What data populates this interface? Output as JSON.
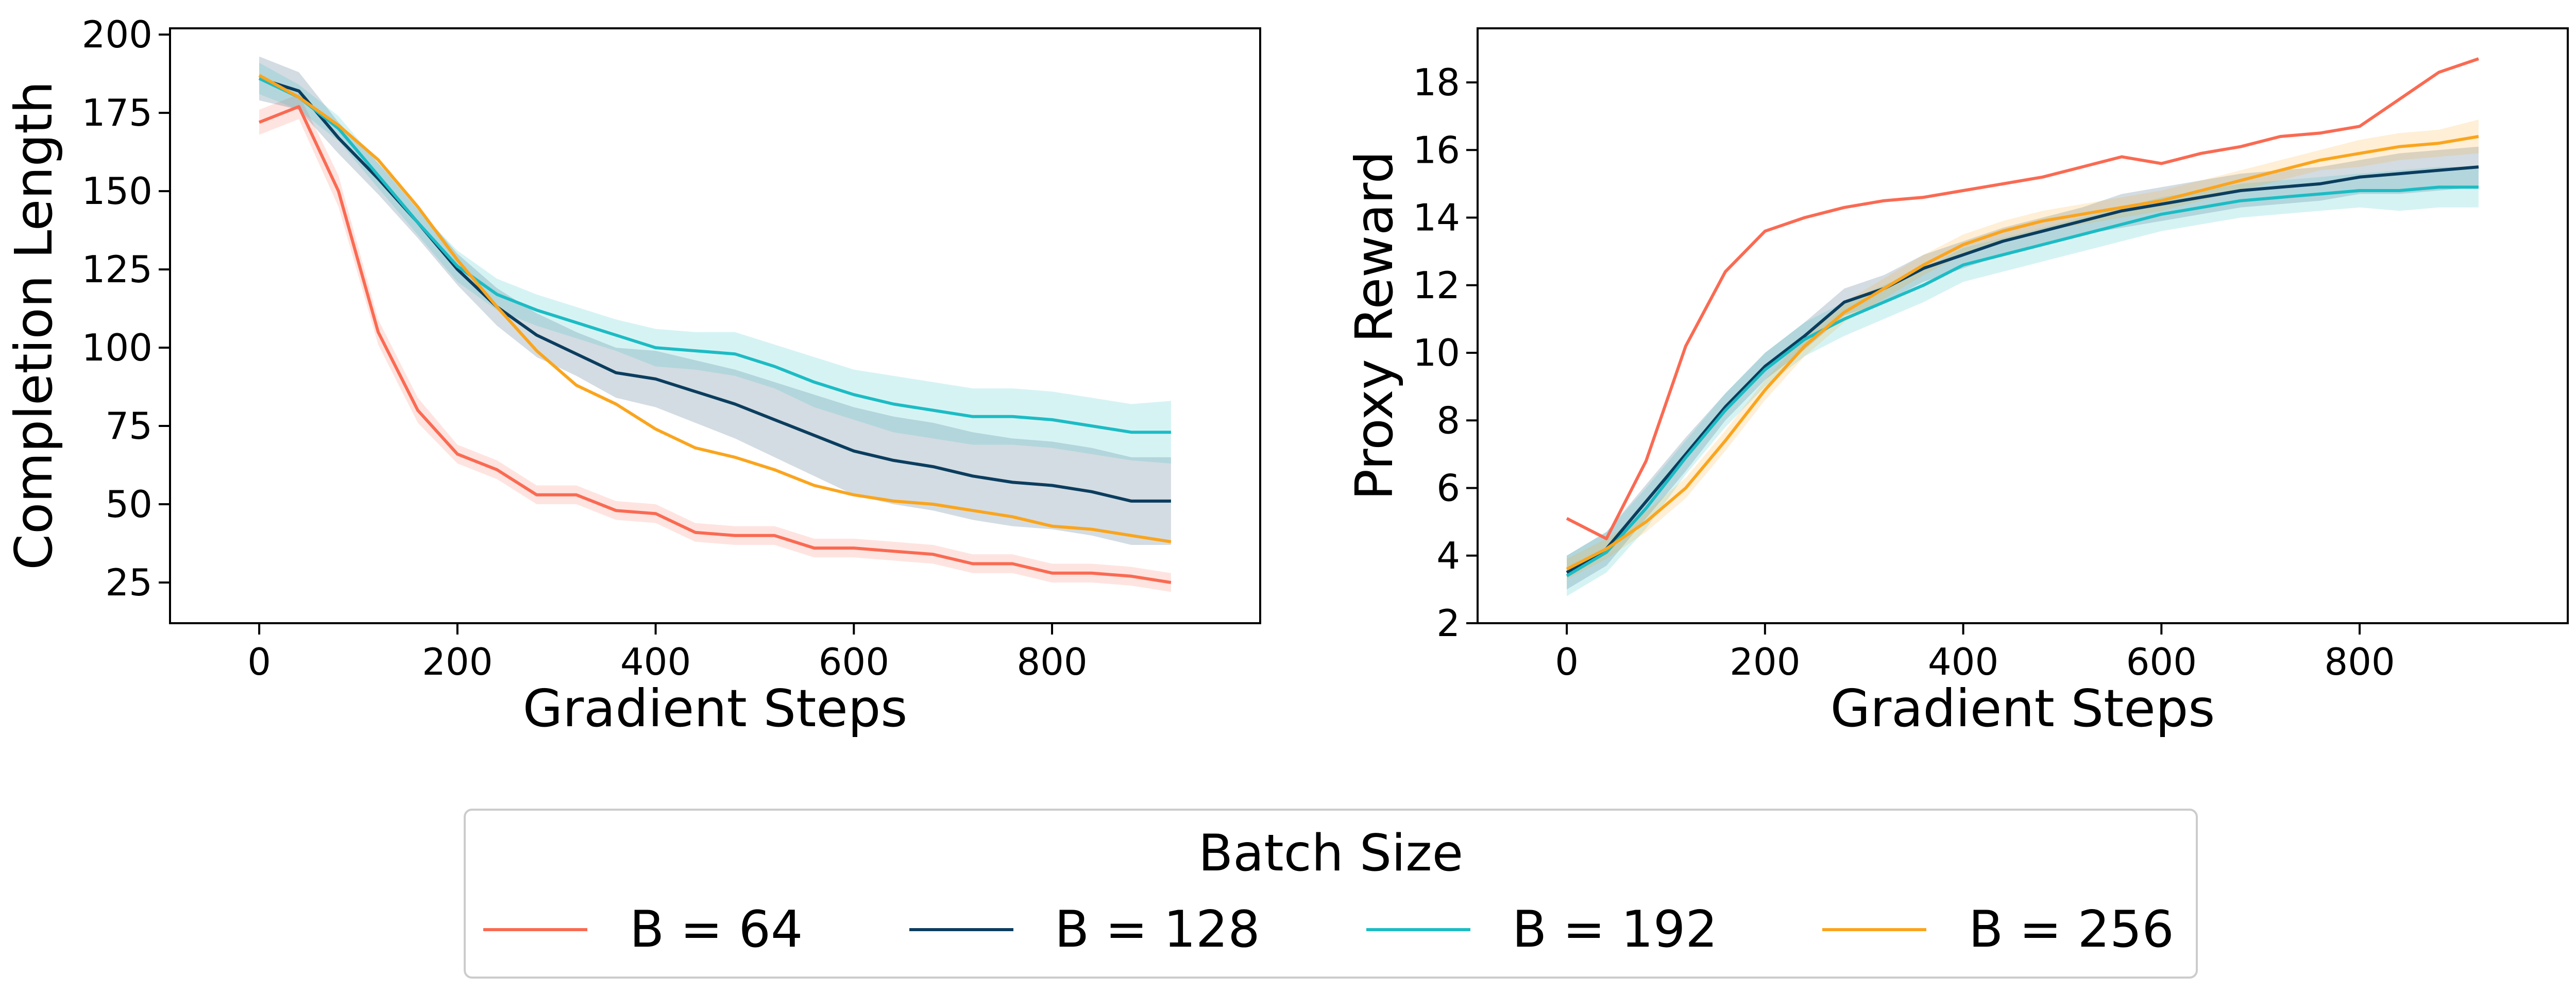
{
  "chart_data": [
    {
      "type": "line",
      "title": "",
      "xlabel": "Gradient Steps",
      "ylabel": "Completion Length",
      "xlim": [
        -90,
        1010
      ],
      "ylim": [
        12,
        202
      ],
      "xticks": [
        0,
        200,
        400,
        600,
        800
      ],
      "yticks": [
        25,
        50,
        75,
        100,
        125,
        150,
        175,
        200
      ],
      "x": [
        0,
        40,
        80,
        120,
        160,
        200,
        240,
        280,
        320,
        360,
        400,
        440,
        480,
        520,
        560,
        600,
        640,
        680,
        720,
        760,
        800,
        840,
        880,
        920
      ],
      "series": [
        {
          "name": "B = 64",
          "color": "#FA6A52",
          "values": [
            172,
            177,
            150,
            105,
            80,
            66,
            61,
            53,
            53,
            48,
            47,
            41,
            40,
            40,
            36,
            36,
            35,
            34,
            31,
            31,
            28,
            28,
            27,
            25
          ],
          "band": [
            4,
            4,
            5,
            4,
            4,
            3,
            3,
            3,
            3,
            3,
            3,
            3,
            3,
            3,
            3,
            3,
            3,
            3,
            3,
            3,
            3,
            3,
            3,
            3
          ]
        },
        {
          "name": "B = 128",
          "color": "#0B3D5E",
          "values": [
            186,
            182,
            167,
            154,
            140,
            125,
            113,
            104,
            98,
            92,
            90,
            86,
            82,
            77,
            72,
            67,
            64,
            62,
            59,
            57,
            56,
            54,
            51,
            51
          ],
          "band": [
            7,
            6,
            5,
            5,
            5,
            5,
            6,
            7,
            7,
            8,
            9,
            10,
            11,
            12,
            13,
            14,
            14,
            14,
            14,
            14,
            14,
            14,
            14,
            14
          ]
        },
        {
          "name": "B = 192",
          "color": "#1CBCC4",
          "values": [
            186,
            180,
            170,
            155,
            140,
            126,
            117,
            112,
            108,
            104,
            100,
            99,
            98,
            94,
            89,
            85,
            82,
            80,
            78,
            78,
            77,
            75,
            73,
            73
          ],
          "band": [
            5,
            4,
            4,
            4,
            4,
            5,
            5,
            5,
            5,
            5,
            6,
            6,
            7,
            7,
            8,
            8,
            9,
            9,
            9,
            9,
            9,
            9,
            9,
            10
          ]
        },
        {
          "name": "B = 256",
          "color": "#FAA51E",
          "values": [
            187,
            180,
            171,
            160,
            145,
            128,
            113,
            99,
            88,
            82,
            74,
            68,
            65,
            61,
            56,
            53,
            51,
            50,
            48,
            46,
            43,
            42,
            40,
            38
          ]
        }
      ]
    },
    {
      "type": "line",
      "title": "",
      "xlabel": "Gradient Steps",
      "ylabel": "Proxy Reward",
      "xlim": [
        -90,
        1010
      ],
      "ylim": [
        2,
        19.6
      ],
      "xticks": [
        0,
        200,
        400,
        600,
        800
      ],
      "yticks": [
        2,
        4,
        6,
        8,
        10,
        12,
        14,
        16,
        18
      ],
      "x": [
        0,
        40,
        80,
        120,
        160,
        200,
        240,
        280,
        320,
        360,
        400,
        440,
        480,
        520,
        560,
        600,
        640,
        680,
        720,
        760,
        800,
        840,
        880,
        920
      ],
      "series": [
        {
          "name": "B = 64",
          "color": "#FA6A52",
          "values": [
            5.1,
            4.5,
            6.8,
            10.2,
            12.4,
            13.6,
            14.0,
            14.3,
            14.5,
            14.6,
            14.8,
            15.0,
            15.2,
            15.5,
            15.8,
            15.6,
            15.9,
            16.1,
            16.4,
            16.5,
            16.7,
            17.5,
            18.3,
            18.7
          ]
        },
        {
          "name": "B = 128",
          "color": "#0B3D5E",
          "values": [
            3.5,
            4.2,
            5.6,
            7.0,
            8.4,
            9.6,
            10.5,
            11.5,
            11.9,
            12.5,
            12.9,
            13.3,
            13.6,
            13.9,
            14.2,
            14.4,
            14.6,
            14.8,
            14.9,
            15.0,
            15.2,
            15.3,
            15.4,
            15.5
          ],
          "band": [
            0.5,
            0.5,
            0.5,
            0.5,
            0.4,
            0.4,
            0.4,
            0.4,
            0.4,
            0.4,
            0.4,
            0.4,
            0.4,
            0.4,
            0.5,
            0.5,
            0.5,
            0.5,
            0.5,
            0.5,
            0.5,
            0.6,
            0.6,
            0.6
          ]
        },
        {
          "name": "B = 192",
          "color": "#1CBCC4",
          "values": [
            3.4,
            4.1,
            5.4,
            6.9,
            8.3,
            9.5,
            10.4,
            11.0,
            11.5,
            12.0,
            12.6,
            12.9,
            13.2,
            13.5,
            13.8,
            14.1,
            14.3,
            14.5,
            14.6,
            14.7,
            14.8,
            14.8,
            14.9,
            14.9
          ],
          "band": [
            0.6,
            0.6,
            0.6,
            0.5,
            0.5,
            0.5,
            0.5,
            0.5,
            0.5,
            0.5,
            0.5,
            0.5,
            0.5,
            0.5,
            0.5,
            0.5,
            0.5,
            0.5,
            0.5,
            0.5,
            0.5,
            0.6,
            0.6,
            0.6
          ]
        },
        {
          "name": "B = 256",
          "color": "#FAA51E",
          "values": [
            3.6,
            4.2,
            5.0,
            6.0,
            7.4,
            8.9,
            10.2,
            11.2,
            11.9,
            12.6,
            13.2,
            13.6,
            13.9,
            14.1,
            14.3,
            14.5,
            14.8,
            15.1,
            15.4,
            15.7,
            15.9,
            16.1,
            16.2,
            16.4
          ],
          "band": [
            0.3,
            0.3,
            0.3,
            0.3,
            0.3,
            0.3,
            0.3,
            0.3,
            0.3,
            0.3,
            0.3,
            0.3,
            0.3,
            0.3,
            0.3,
            0.3,
            0.3,
            0.3,
            0.3,
            0.3,
            0.4,
            0.4,
            0.4,
            0.5
          ]
        }
      ]
    }
  ],
  "legend": {
    "title": "Batch Size",
    "entries": [
      "B = 64",
      "B = 128",
      "B = 192",
      "B = 256"
    ],
    "colors": [
      "#FA6A52",
      "#0B3D5E",
      "#1CBCC4",
      "#FAA51E"
    ]
  }
}
